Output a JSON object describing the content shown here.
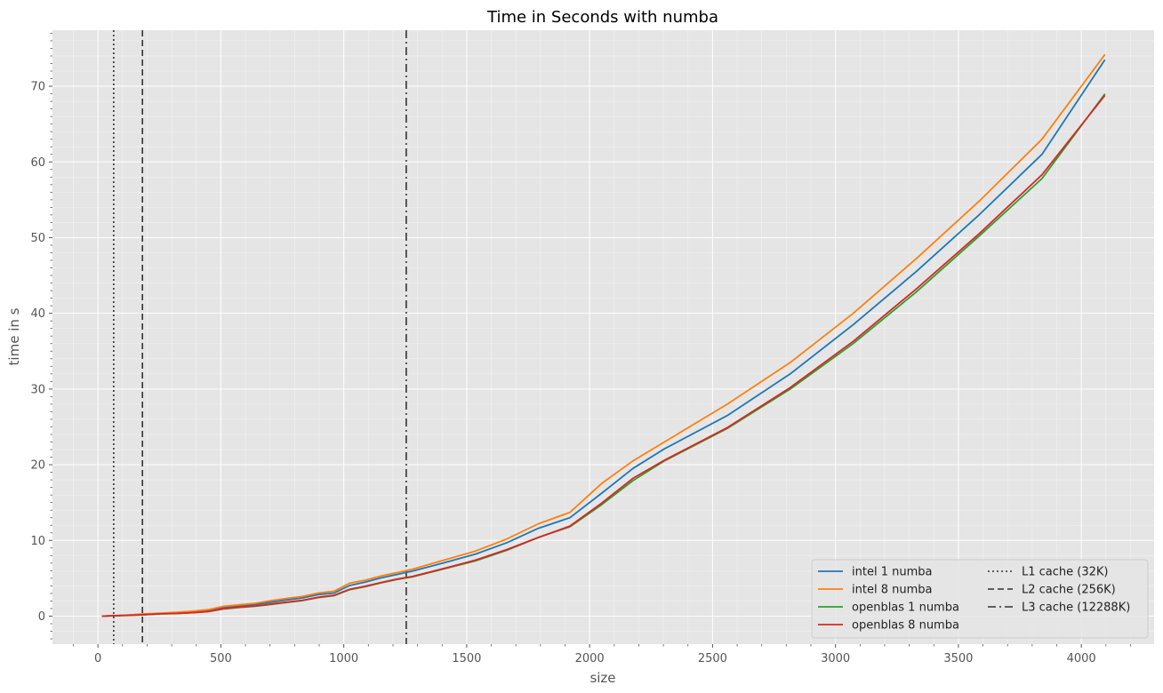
{
  "chart_data": {
    "type": "line",
    "title": "Time in Seconds with numba",
    "xlabel": "size",
    "ylabel": "time in s",
    "xlim": [
      -185,
      4296
    ],
    "ylim": [
      -3.7,
      77.4
    ],
    "xticks": [
      0,
      500,
      1000,
      1500,
      2000,
      2500,
      3000,
      3500,
      4000
    ],
    "yticks": [
      0,
      10,
      20,
      30,
      40,
      50,
      60,
      70
    ],
    "grid": true,
    "legend_position": "lower-right",
    "series": [
      {
        "name": "intel 1 numba",
        "color": "#1f77b4",
        "x": [
          16,
          64,
          128,
          192,
          256,
          320,
          384,
          448,
          512,
          576,
          640,
          704,
          768,
          832,
          896,
          960,
          1024,
          1088,
          1152,
          1216,
          1280,
          1408,
          1536,
          1664,
          1792,
          1920,
          2048,
          2176,
          2304,
          2560,
          2816,
          3072,
          3328,
          3584,
          3840,
          4096
        ],
        "y": [
          0.0,
          0.05,
          0.15,
          0.25,
          0.35,
          0.45,
          0.55,
          0.75,
          1.15,
          1.35,
          1.55,
          1.85,
          2.15,
          2.4,
          2.85,
          3.05,
          4.05,
          4.5,
          5.05,
          5.5,
          5.95,
          7.05,
          8.2,
          9.7,
          11.6,
          13.0,
          16.2,
          19.5,
          22.1,
          26.5,
          32.0,
          38.5,
          45.5,
          53.0,
          61.0,
          73.5
        ]
      },
      {
        "name": "intel 8 numba",
        "color": "#ff7f0e",
        "x": [
          16,
          64,
          128,
          192,
          256,
          320,
          384,
          448,
          512,
          576,
          640,
          704,
          768,
          832,
          896,
          960,
          1024,
          1088,
          1152,
          1216,
          1280,
          1408,
          1536,
          1664,
          1792,
          1920,
          2048,
          2176,
          2304,
          2560,
          2816,
          3072,
          3328,
          3584,
          3840,
          4096
        ],
        "y": [
          0.0,
          0.05,
          0.15,
          0.3,
          0.4,
          0.5,
          0.65,
          0.85,
          1.3,
          1.5,
          1.7,
          2.05,
          2.35,
          2.6,
          3.05,
          3.3,
          4.35,
          4.75,
          5.3,
          5.75,
          6.2,
          7.4,
          8.6,
          10.2,
          12.2,
          13.7,
          17.5,
          20.5,
          23.0,
          28.0,
          33.5,
          40.0,
          47.2,
          54.8,
          63.0,
          74.2
        ]
      },
      {
        "name": "openblas 1 numba",
        "color": "#2ca02c",
        "x": [
          16,
          64,
          128,
          192,
          256,
          320,
          384,
          448,
          512,
          576,
          640,
          704,
          768,
          832,
          896,
          960,
          1024,
          1088,
          1152,
          1216,
          1280,
          1408,
          1536,
          1664,
          1792,
          1920,
          2048,
          2176,
          2304,
          2560,
          2816,
          3072,
          3328,
          3584,
          3840,
          4096
        ],
        "y": [
          0.0,
          0.05,
          0.1,
          0.2,
          0.3,
          0.35,
          0.45,
          0.6,
          0.95,
          1.15,
          1.3,
          1.55,
          1.8,
          2.05,
          2.45,
          2.7,
          3.5,
          3.9,
          4.4,
          4.85,
          5.2,
          6.25,
          7.3,
          8.7,
          10.4,
          11.8,
          14.7,
          17.9,
          20.5,
          24.8,
          30.0,
          36.0,
          42.8,
          50.2,
          57.8,
          69.0
        ]
      },
      {
        "name": "openblas 8 numba",
        "color": "#d62728",
        "x": [
          16,
          64,
          128,
          192,
          256,
          320,
          384,
          448,
          512,
          576,
          640,
          704,
          768,
          832,
          896,
          960,
          1024,
          1088,
          1152,
          1216,
          1280,
          1408,
          1536,
          1664,
          1792,
          1920,
          2048,
          2176,
          2304,
          2560,
          2816,
          3072,
          3328,
          3584,
          3840,
          4096
        ],
        "y": [
          0.0,
          0.05,
          0.1,
          0.2,
          0.3,
          0.35,
          0.45,
          0.6,
          1.0,
          1.2,
          1.35,
          1.6,
          1.85,
          2.1,
          2.5,
          2.75,
          3.55,
          3.95,
          4.45,
          4.9,
          5.25,
          6.3,
          7.4,
          8.8,
          10.4,
          11.9,
          14.9,
          18.2,
          20.6,
          24.9,
          30.2,
          36.3,
          43.2,
          50.5,
          58.3,
          68.8
        ]
      }
    ],
    "vlines": [
      {
        "name": "L1 cache (32K)",
        "x": 64,
        "style": "dotted",
        "color": "#333333"
      },
      {
        "name": "L2 cache (256K)",
        "x": 181,
        "style": "dashed",
        "color": "#333333"
      },
      {
        "name": "L3 cache (12288K)",
        "x": 1254,
        "style": "dashdot",
        "color": "#333333"
      }
    ]
  }
}
